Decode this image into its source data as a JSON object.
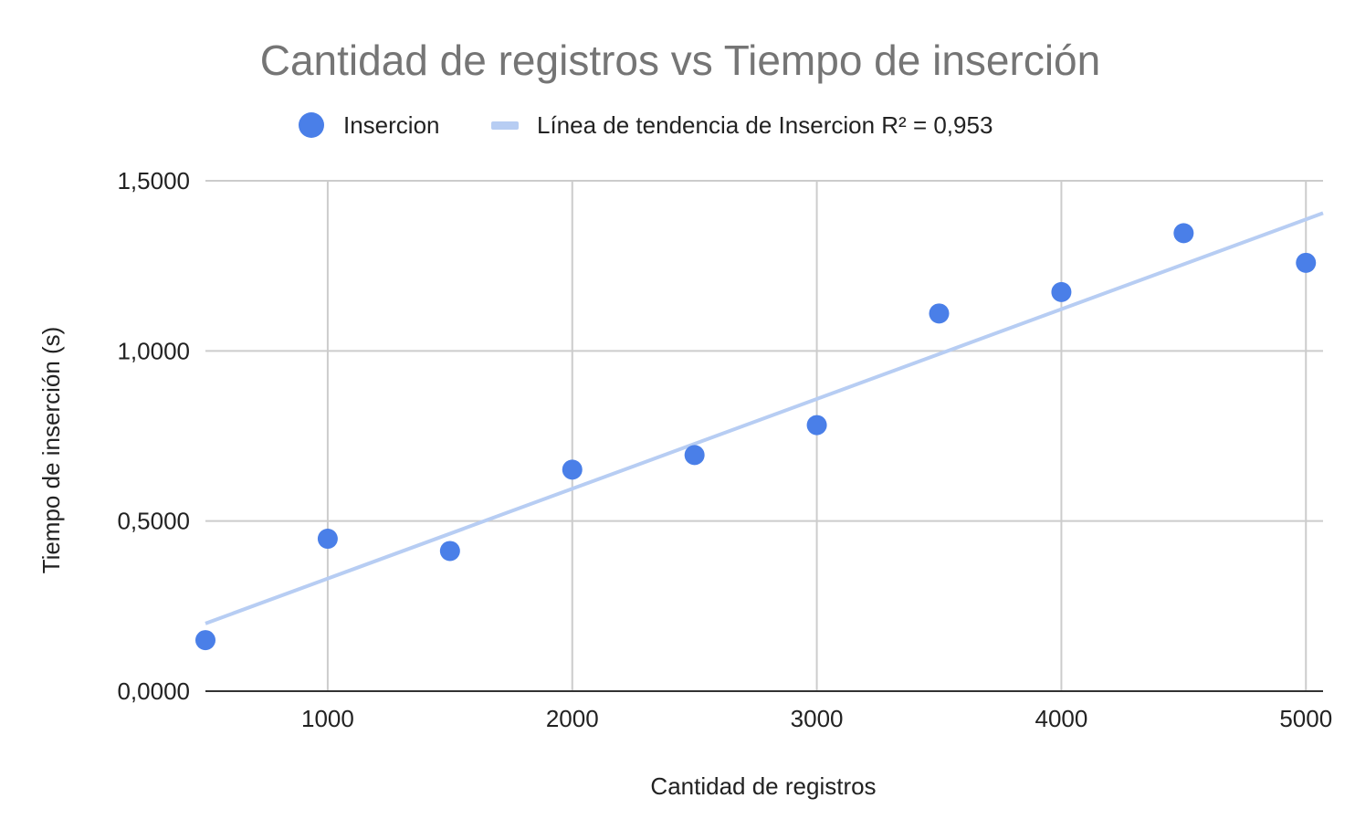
{
  "chart_data": {
    "type": "scatter",
    "title": "Cantidad de registros vs Tiempo de inserción",
    "xlabel": "Cantidad de registros",
    "ylabel": "Tiempo de inserción (s)",
    "xlim": [
      500,
      5070
    ],
    "ylim": [
      0,
      1.5
    ],
    "x_ticks": [
      1000,
      2000,
      3000,
      4000,
      5000
    ],
    "x_tick_labels": [
      "1000",
      "2000",
      "3000",
      "4000",
      "5000"
    ],
    "y_ticks": [
      0,
      0.5,
      1.0,
      1.5
    ],
    "y_tick_labels": [
      "0,0000",
      "0,5000",
      "1,0000",
      "1,5000"
    ],
    "grid": true,
    "legend_position": "top",
    "series": [
      {
        "name": "Insercion",
        "color": "#4a7fe8",
        "x": [
          500,
          1000,
          1500,
          2000,
          2500,
          3000,
          3500,
          4000,
          4500,
          5000
        ],
        "y": [
          0.15,
          0.448,
          0.412,
          0.651,
          0.694,
          0.782,
          1.11,
          1.173,
          1.346,
          1.259
        ]
      }
    ],
    "trendline": {
      "label": "Línea de tendencia de Insercion R² = 0,953",
      "color": "#b7cdf3",
      "type": "linear",
      "x": [
        500,
        5070
      ],
      "y": [
        0.199,
        1.405
      ]
    }
  }
}
